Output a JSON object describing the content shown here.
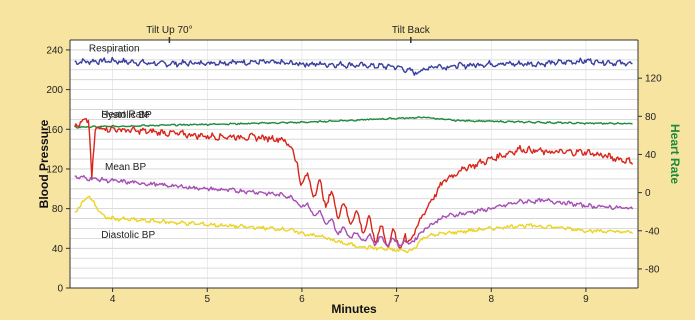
{
  "chart_data": {
    "type": "line",
    "xlabel": "Minutes",
    "ylabel_left": "Blood Pressure",
    "ylabel_right": "Heart Rate",
    "xlim": [
      3.55,
      9.55
    ],
    "ylim_left": [
      0,
      250
    ],
    "ylim_right": [
      -100,
      160
    ],
    "x_ticks": [
      4,
      5,
      6,
      7,
      8,
      9
    ],
    "y_ticks_left": [
      0,
      40,
      80,
      120,
      160,
      200,
      240
    ],
    "y_ticks_right": [
      -80,
      -40,
      0,
      40,
      80,
      120
    ],
    "grid": true,
    "legend": "inline labels",
    "events": [
      {
        "label": "Tilt Up 70°",
        "x": 4.6
      },
      {
        "label": "Tilt Back",
        "x": 7.15
      }
    ],
    "series": [
      {
        "name": "Respiration",
        "color": "#3a3f9e",
        "points": [
          [
            3.6,
            228
          ],
          [
            4.0,
            229
          ],
          [
            4.5,
            226
          ],
          [
            5.0,
            227
          ],
          [
            5.5,
            228
          ],
          [
            6.0,
            226
          ],
          [
            6.5,
            225
          ],
          [
            7.0,
            223
          ],
          [
            7.2,
            217
          ],
          [
            7.4,
            224
          ],
          [
            7.5,
            223
          ],
          [
            8.0,
            226
          ],
          [
            8.5,
            226
          ],
          [
            9.0,
            229
          ],
          [
            9.5,
            226
          ]
        ]
      },
      {
        "name": "Heart Rate",
        "color": "#1e8a3c",
        "points": [
          [
            3.6,
            162
          ],
          [
            4.0,
            163
          ],
          [
            4.5,
            164
          ],
          [
            5.0,
            165
          ],
          [
            5.5,
            166
          ],
          [
            6.0,
            167
          ],
          [
            6.5,
            169
          ],
          [
            7.0,
            171
          ],
          [
            7.3,
            172
          ],
          [
            7.6,
            169
          ],
          [
            8.0,
            168
          ],
          [
            8.5,
            167
          ],
          [
            9.0,
            166
          ],
          [
            9.5,
            166
          ]
        ]
      },
      {
        "name": "Systolic BP",
        "color": "#d9261c",
        "points": [
          [
            3.6,
            163
          ],
          [
            3.75,
            170
          ],
          [
            3.78,
            110
          ],
          [
            3.82,
            162
          ],
          [
            4.0,
            160
          ],
          [
            4.5,
            157
          ],
          [
            5.0,
            153
          ],
          [
            5.5,
            152
          ],
          [
            5.8,
            150
          ],
          [
            5.9,
            140
          ],
          [
            6.0,
            110
          ],
          [
            6.2,
            97
          ],
          [
            6.4,
            80
          ],
          [
            6.6,
            68
          ],
          [
            6.8,
            55
          ],
          [
            7.0,
            48
          ],
          [
            7.15,
            48
          ],
          [
            7.3,
            78
          ],
          [
            7.5,
            108
          ],
          [
            7.7,
            120
          ],
          [
            8.0,
            130
          ],
          [
            8.3,
            140
          ],
          [
            8.6,
            137
          ],
          [
            9.0,
            137
          ],
          [
            9.5,
            127
          ]
        ]
      },
      {
        "name": "Mean BP",
        "color": "#a64fb5",
        "points": [
          [
            3.6,
            112
          ],
          [
            4.0,
            108
          ],
          [
            4.5,
            104
          ],
          [
            5.0,
            100
          ],
          [
            5.5,
            97
          ],
          [
            5.85,
            93
          ],
          [
            6.0,
            85
          ],
          [
            6.2,
            72
          ],
          [
            6.4,
            58
          ],
          [
            6.6,
            52
          ],
          [
            6.8,
            48
          ],
          [
            7.0,
            46
          ],
          [
            7.15,
            45
          ],
          [
            7.3,
            60
          ],
          [
            7.5,
            72
          ],
          [
            7.7,
            75
          ],
          [
            8.0,
            80
          ],
          [
            8.3,
            87
          ],
          [
            8.6,
            88
          ],
          [
            9.0,
            83
          ],
          [
            9.5,
            80
          ]
        ]
      },
      {
        "name": "Diastolic BP",
        "color": "#ecd424",
        "points": [
          [
            3.6,
            77
          ],
          [
            3.75,
            93
          ],
          [
            3.9,
            72
          ],
          [
            4.0,
            70
          ],
          [
            4.5,
            67
          ],
          [
            5.0,
            64
          ],
          [
            5.5,
            61
          ],
          [
            5.85,
            59
          ],
          [
            6.0,
            55
          ],
          [
            6.2,
            52
          ],
          [
            6.4,
            46
          ],
          [
            6.6,
            42
          ],
          [
            6.8,
            40
          ],
          [
            7.0,
            38
          ],
          [
            7.15,
            37
          ],
          [
            7.3,
            52
          ],
          [
            7.5,
            55
          ],
          [
            7.7,
            57
          ],
          [
            8.0,
            60
          ],
          [
            8.3,
            63
          ],
          [
            8.6,
            62
          ],
          [
            9.0,
            58
          ],
          [
            9.5,
            56
          ]
        ]
      }
    ]
  }
}
